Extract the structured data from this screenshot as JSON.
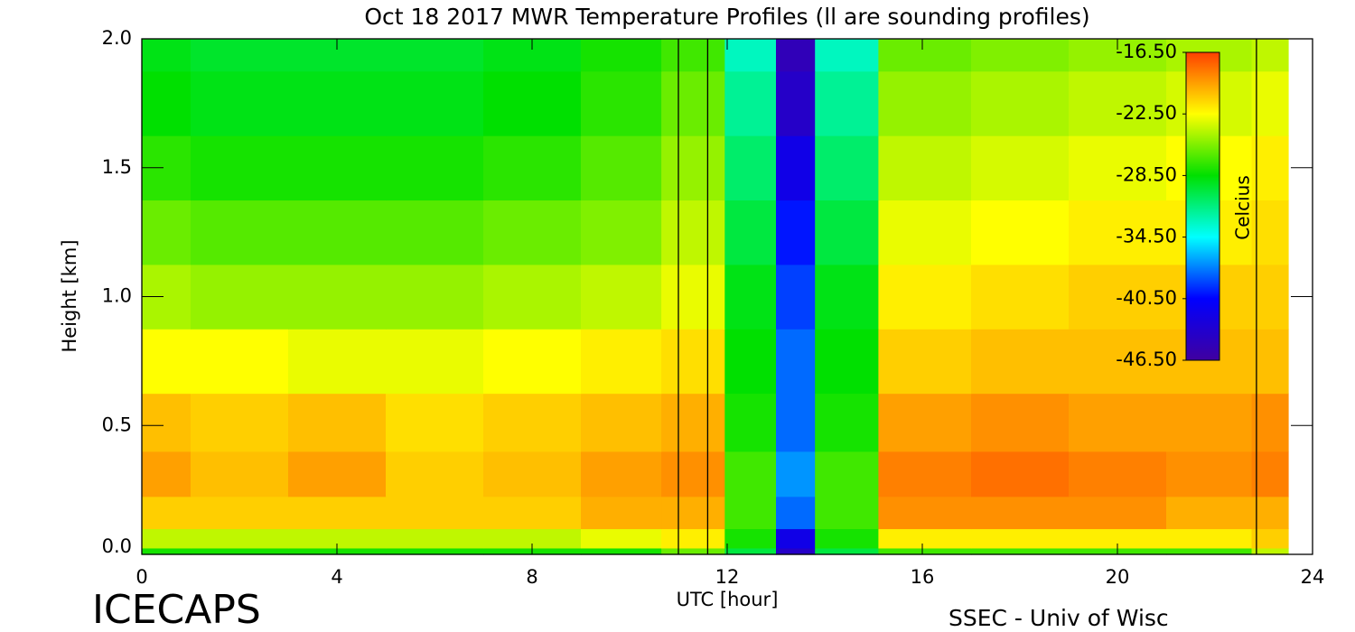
{
  "chart_data": {
    "type": "heatmap",
    "title": "Oct 18 2017 MWR Temperature Profiles (ll are sounding profiles)",
    "x_label": "UTC [hour]",
    "y_label": "Height [km]",
    "colorbar_label": "Celcius",
    "footer_left": "ICECAPS",
    "footer_right": "SSEC - Univ of Wisc",
    "x": [
      0,
      2,
      4,
      6,
      8,
      10,
      11.3,
      12.6,
      13.4,
      14.2,
      16,
      18,
      20,
      22,
      23.5
    ],
    "y": [
      0,
      0.05,
      0.15,
      0.3,
      0.5,
      0.75,
      1.0,
      1.25,
      1.5,
      1.75,
      2.0
    ],
    "z": [
      [
        -28,
        -28,
        -28,
        -28,
        -28,
        -28,
        -26,
        -30,
        -44,
        -30,
        -27,
        -27,
        -27,
        -27,
        -24
      ],
      [
        -24,
        -24,
        -24,
        -24,
        -24,
        -23,
        -22,
        -28,
        -42,
        -28,
        -22,
        -22,
        -22,
        -22,
        -21
      ],
      [
        -21,
        -21,
        -21,
        -21,
        -21,
        -20,
        -20,
        -27,
        -38,
        -27,
        -19,
        -19,
        -19,
        -20,
        -20
      ],
      [
        -19.5,
        -20.5,
        -19.5,
        -21,
        -20.5,
        -19.5,
        -19,
        -27,
        -37,
        -27,
        -18.5,
        -18,
        -18.5,
        -19,
        -18.5
      ],
      [
        -20.5,
        -21,
        -20.5,
        -21.5,
        -21,
        -20.5,
        -20,
        -28,
        -38,
        -28,
        -19.5,
        -19,
        -19.5,
        -19.5,
        -19
      ],
      [
        -22.5,
        -22.5,
        -23,
        -23,
        -22.5,
        -22,
        -21.5,
        -28.5,
        -38,
        -28.5,
        -21,
        -20.5,
        -20.5,
        -20.5,
        -20.5
      ],
      [
        -24.5,
        -25,
        -25,
        -25,
        -24.5,
        -24,
        -23,
        -29,
        -39,
        -29,
        -22,
        -21.5,
        -21,
        -21,
        -21
      ],
      [
        -26,
        -26.5,
        -26.5,
        -26.5,
        -26,
        -25.5,
        -24,
        -30,
        -40,
        -30,
        -23,
        -22.5,
        -22,
        -22,
        -21.5
      ],
      [
        -27.5,
        -28,
        -28,
        -28,
        -27.5,
        -26.5,
        -25,
        -31,
        -42,
        -31,
        -24,
        -23.5,
        -23,
        -22.5,
        -22
      ],
      [
        -28.5,
        -29,
        -29,
        -29,
        -28.5,
        -27.5,
        -26,
        -32,
        -44,
        -32,
        -25,
        -24.5,
        -24,
        -23.5,
        -23
      ],
      [
        -29,
        -29.5,
        -29.5,
        -29.5,
        -29,
        -28,
        -27,
        -33,
        -45,
        -33,
        -26,
        -25.5,
        -25,
        -24.5,
        -24
      ]
    ],
    "sounding_times": [
      11.0,
      11.6,
      22.85
    ],
    "xlim": [
      0,
      24
    ],
    "xticks": [
      0,
      4,
      8,
      12,
      16,
      20,
      24
    ],
    "ylim": [
      0,
      2
    ],
    "yticks": [
      {
        "value": 0,
        "label": "0.0"
      },
      0.5,
      {
        "value": 1,
        "label": "1.0"
      },
      1.5,
      {
        "value": 2,
        "label": "2.0"
      }
    ],
    "zlim": [
      -46.5,
      -16.5
    ],
    "zticks": [
      {
        "value": -16.5,
        "label": "-16.50"
      },
      {
        "value": -22.5,
        "label": "-22.50"
      },
      {
        "value": -28.5,
        "label": "-28.50"
      },
      {
        "value": -34.5,
        "label": "-34.50"
      },
      {
        "value": -40.5,
        "label": "-40.50"
      },
      {
        "value": -46.5,
        "label": "-46.50"
      }
    ],
    "colormap": [
      "#4000a0",
      "#0000ff",
      "#00ffff",
      "#00e000",
      "#ffff00",
      "#ff4000"
    ]
  }
}
